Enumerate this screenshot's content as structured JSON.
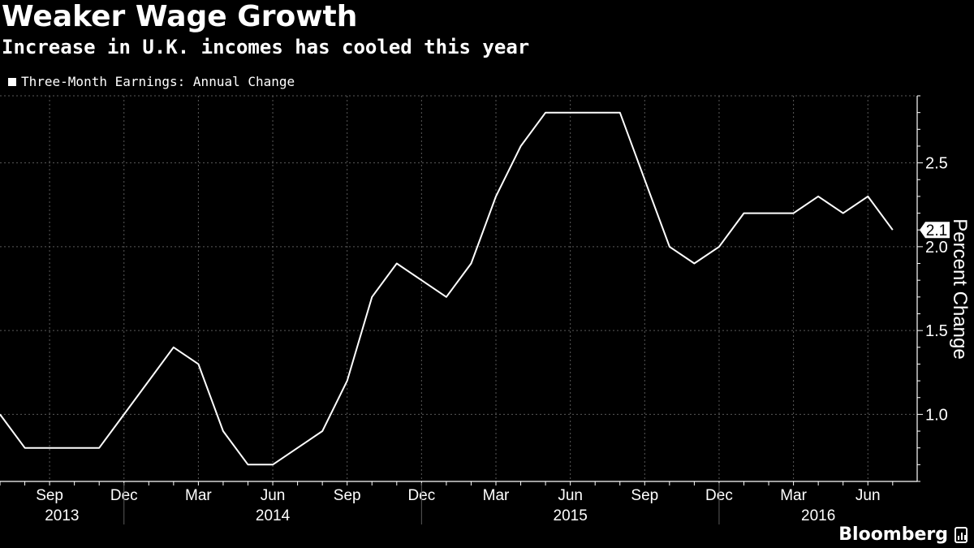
{
  "header": {
    "title": "Weaker Wage Growth",
    "subtitle": "Increase in U.K. incomes has cooled this year"
  },
  "brand": {
    "name": "Bloomberg",
    "icon": "bloomberg-chart-icon"
  },
  "colors": {
    "background": "#000000",
    "line": "#ffffff",
    "grid": "#5a5a5a"
  },
  "chart_data": {
    "type": "line",
    "title": "Weaker Wage Growth",
    "subtitle": "Increase in U.K. incomes has cooled this year",
    "legend": [
      "Three-Month Earnings: Annual Change"
    ],
    "legend_position": "top-left",
    "ylabel": "Percent Change",
    "xlabel": "",
    "ylim": [
      0.6,
      2.9
    ],
    "y_ticks": [
      1.0,
      1.5,
      2.0,
      2.5
    ],
    "y_tick_labels": [
      "1.0",
      "1.5",
      "2.0",
      "2.5"
    ],
    "grid": true,
    "x_month_ticks": [
      {
        "index": 2,
        "label": "Sep"
      },
      {
        "index": 5,
        "label": "Dec"
      },
      {
        "index": 8,
        "label": "Mar"
      },
      {
        "index": 11,
        "label": "Jun"
      },
      {
        "index": 14,
        "label": "Sep"
      },
      {
        "index": 17,
        "label": "Dec"
      },
      {
        "index": 20,
        "label": "Mar"
      },
      {
        "index": 23,
        "label": "Jun"
      },
      {
        "index": 26,
        "label": "Sep"
      },
      {
        "index": 29,
        "label": "Dec"
      },
      {
        "index": 32,
        "label": "Mar"
      },
      {
        "index": 35,
        "label": "Jun"
      }
    ],
    "x_year_labels": [
      {
        "index": 2.5,
        "label": "2013"
      },
      {
        "index": 11,
        "label": "2014"
      },
      {
        "index": 23,
        "label": "2015"
      },
      {
        "index": 33,
        "label": "2016"
      }
    ],
    "x_year_dividers": [
      5,
      17,
      29
    ],
    "x_range": [
      0,
      36.7
    ],
    "series": [
      {
        "name": "Three-Month Earnings: Annual Change",
        "months": [
          "Jul 2013",
          "Aug 2013",
          "Sep 2013",
          "Oct 2013",
          "Nov 2013",
          "Dec 2013",
          "Jan 2014",
          "Feb 2014",
          "Mar 2014",
          "Apr 2014",
          "May 2014",
          "Jun 2014",
          "Jul 2014",
          "Aug 2014",
          "Sep 2014",
          "Oct 2014",
          "Nov 2014",
          "Dec 2014",
          "Jan 2015",
          "Feb 2015",
          "Mar 2015",
          "Apr 2015",
          "May 2015",
          "Jun 2015",
          "Jul 2015",
          "Aug 2015",
          "Sep 2015",
          "Oct 2015",
          "Nov 2015",
          "Dec 2015",
          "Jan 2016",
          "Feb 2016",
          "Mar 2016",
          "Apr 2016",
          "May 2016",
          "Jun 2016",
          "Jul 2016"
        ],
        "values": [
          1.0,
          0.8,
          0.8,
          0.8,
          0.8,
          1.0,
          1.2,
          1.4,
          1.3,
          0.9,
          0.7,
          0.7,
          0.8,
          0.9,
          1.2,
          1.7,
          1.9,
          1.8,
          1.7,
          1.9,
          2.3,
          2.6,
          2.8,
          2.8,
          2.8,
          2.8,
          2.4,
          2.0,
          1.9,
          2.0,
          2.2,
          2.2,
          2.2,
          2.3,
          2.2,
          2.3,
          2.1
        ]
      }
    ],
    "last_value_label": "2.1"
  }
}
